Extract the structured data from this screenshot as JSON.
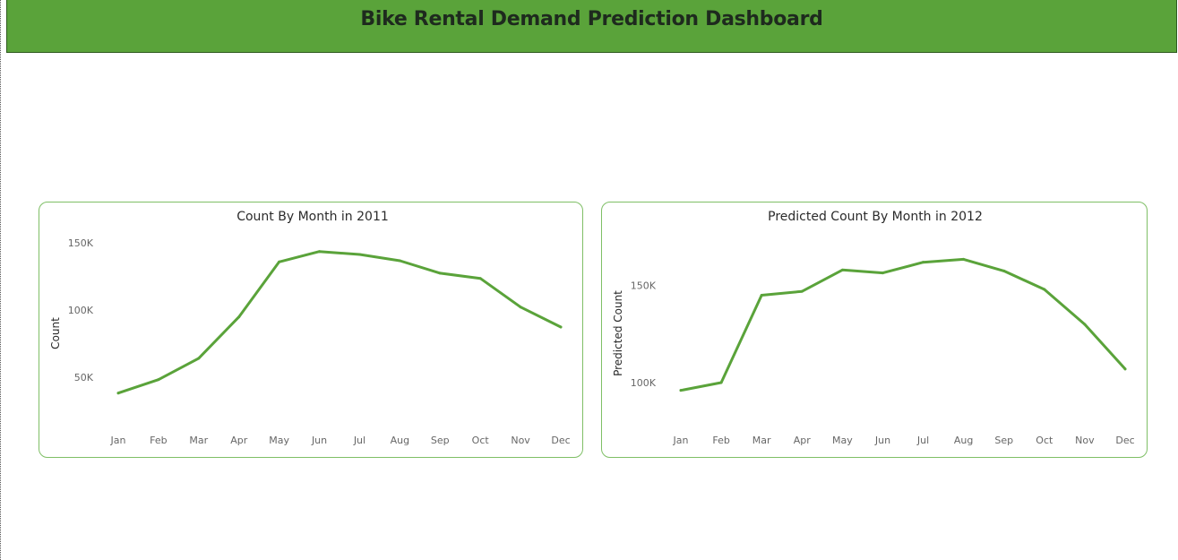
{
  "header": {
    "title": "Bike Rental Demand Prediction Dashboard"
  },
  "colors": {
    "header_bg": "#5aa33a",
    "line": "#5aa33a",
    "card_border": "#7fbf66"
  },
  "chart_data": [
    {
      "type": "line",
      "title": "Count By Month in 2011",
      "xlabel": "",
      "ylabel": "Count",
      "categories": [
        "Jan",
        "Feb",
        "Mar",
        "Apr",
        "May",
        "Jun",
        "Jul",
        "Aug",
        "Sep",
        "Oct",
        "Nov",
        "Dec"
      ],
      "series": [
        {
          "values": [
            38189,
            48215,
            64045,
            94870,
            135821,
            143512,
            141341,
            136691,
            127418,
            123511,
            102167,
            87323
          ]
        }
      ],
      "yticks": [
        50000,
        100000,
        150000
      ],
      "ytick_labels": [
        "50K",
        "100K",
        "150K"
      ],
      "ylim": [
        20000,
        150000
      ],
      "grid": false
    },
    {
      "type": "line",
      "title": "Predicted Count By Month in 2012",
      "xlabel": "",
      "ylabel": "Predicted Count",
      "categories": [
        "Jan",
        "Feb",
        "Mar",
        "Apr",
        "May",
        "Jun",
        "Jul",
        "Aug",
        "Sep",
        "Oct",
        "Nov",
        "Dec"
      ],
      "series": [
        {
          "values": [
            96000,
            100000,
            145000,
            147000,
            158000,
            156500,
            162000,
            163500,
            157500,
            148000,
            130000,
            107000
          ]
        }
      ],
      "yticks": [
        100000,
        150000
      ],
      "ytick_labels": [
        "100K",
        "150K"
      ],
      "ylim": [
        82000,
        172000
      ],
      "grid": false
    }
  ]
}
